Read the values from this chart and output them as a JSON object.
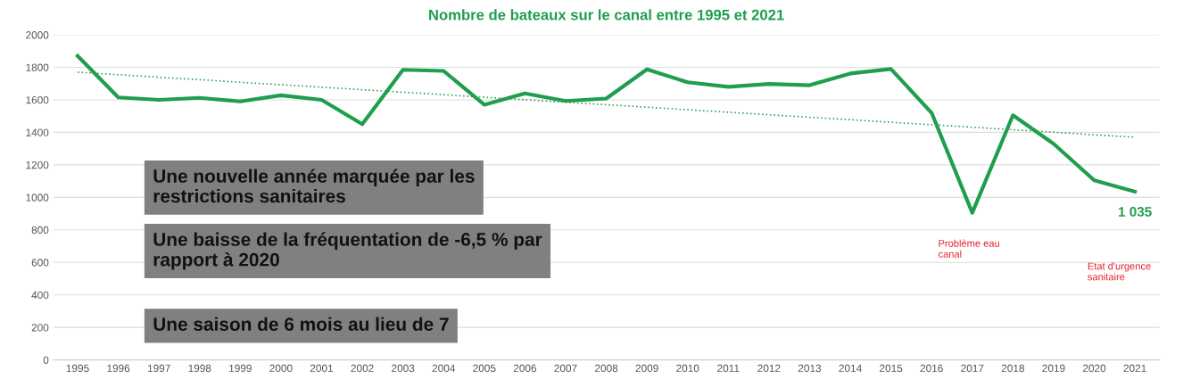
{
  "chart_data": {
    "type": "line",
    "title": "Nombre de bateaux sur le canal entre 1995 et 2021",
    "categories": [
      "1995",
      "1996",
      "1997",
      "1998",
      "1999",
      "2000",
      "2001",
      "2002",
      "2003",
      "2004",
      "2005",
      "2006",
      "2007",
      "2008",
      "2009",
      "2010",
      "2011",
      "2012",
      "2013",
      "2014",
      "2015",
      "2016",
      "2017",
      "2018",
      "2019",
      "2020",
      "2021"
    ],
    "series": [
      {
        "color": "#1f9e4d",
        "values": [
          1870,
          1615,
          1600,
          1612,
          1590,
          1628,
          1600,
          1450,
          1785,
          1778,
          1570,
          1640,
          1593,
          1608,
          1788,
          1708,
          1680,
          1698,
          1690,
          1762,
          1790,
          1520,
          905,
          1505,
          1330,
          1105,
          1035
        ],
        "value_labels": [
          null,
          null,
          null,
          null,
          null,
          null,
          null,
          null,
          null,
          null,
          null,
          null,
          null,
          null,
          null,
          null,
          null,
          null,
          null,
          null,
          null,
          null,
          null,
          null,
          null,
          null,
          "1 035"
        ]
      },
      {
        "type": "line",
        "color": "#3aa35a",
        "line_style": "dotted",
        "values": [
          1770,
          1755,
          1739,
          1724,
          1708,
          1693,
          1678,
          1662,
          1647,
          1632,
          1616,
          1601,
          1585,
          1570,
          1555,
          1539,
          1524,
          1508,
          1493,
          1478,
          1462,
          1447,
          1432,
          1416,
          1401,
          1385,
          1370
        ]
      }
    ],
    "ylim": [
      0,
      2000
    ],
    "yticks": [
      0,
      200,
      400,
      600,
      800,
      1000,
      1200,
      1400,
      1600,
      1800,
      2000
    ],
    "grid": "y",
    "legend": false,
    "annotations": [
      "Une nouvelle année marquée par les\nrestrictions sanitaires",
      "Une baisse de la fréquentation de -6,5 % par\nrapport à 2020",
      "Une saison de 6 mois au lieu de 7",
      "Problème eau\ncanal",
      "Etat d'urgence\nsanitaire"
    ]
  }
}
